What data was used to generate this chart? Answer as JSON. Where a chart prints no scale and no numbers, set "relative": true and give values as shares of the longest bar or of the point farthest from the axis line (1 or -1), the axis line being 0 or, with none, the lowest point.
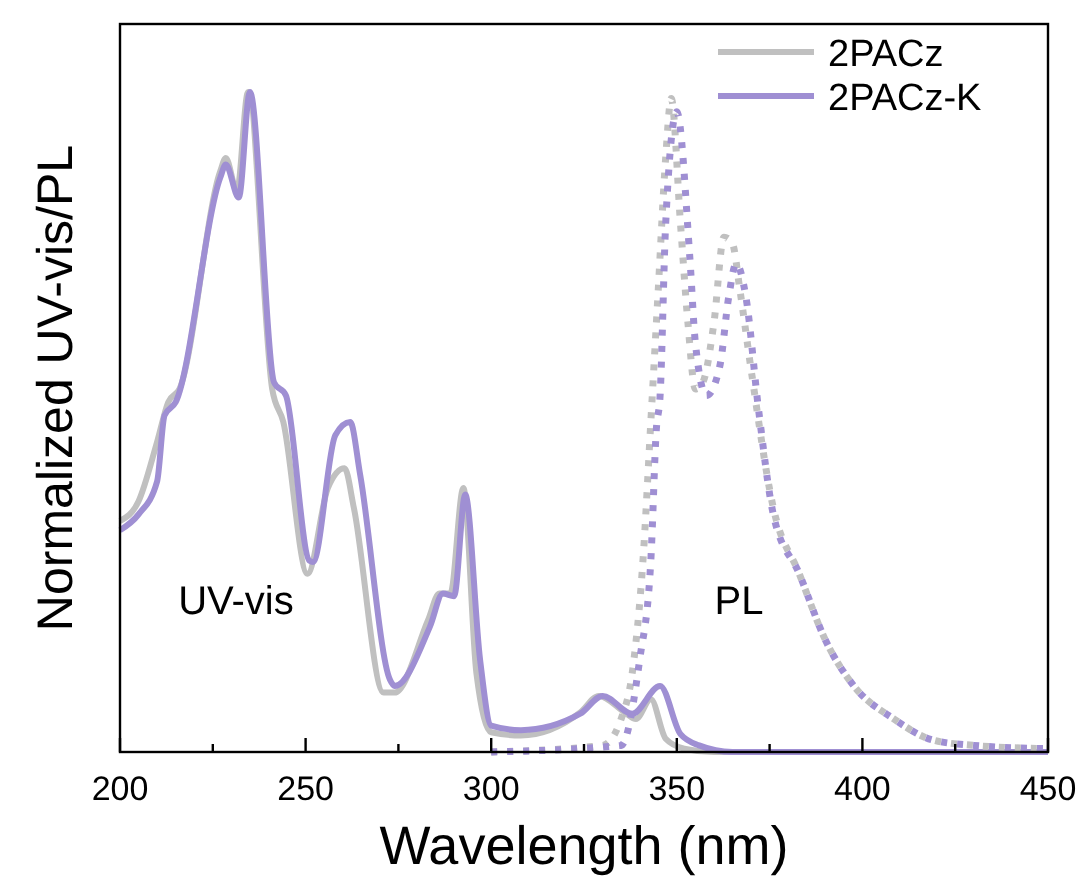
{
  "chart_data": {
    "type": "line",
    "relative": true,
    "xlabel": "Wavelength (nm)",
    "ylabel": "Normalized UV-vis/PL",
    "xlim": [
      200,
      450
    ],
    "xticks": [
      200,
      {
        "value": 225,
        "label": null
      },
      250,
      {
        "value": 275,
        "label": null
      },
      300,
      {
        "value": 325,
        "label": null
      },
      350,
      {
        "value": 375,
        "label": null
      },
      400,
      {
        "value": 425,
        "label": null
      },
      450
    ],
    "legend": "top right",
    "tick_labels": "x",
    "annotations": [
      "UV-vis",
      "PL"
    ],
    "series": [
      {
        "name": "2PACz",
        "color": "#c0c0c0",
        "line_style": "solid",
        "x": [
          200,
          205,
          210,
          213,
          216,
          227,
          228.5,
          231.5,
          234.5,
          241,
          244,
          250.5,
          256,
          260.5,
          263,
          271,
          274,
          283,
          286,
          289,
          292.5,
          296,
          300,
          308,
          324,
          329,
          336,
          339,
          343,
          347,
          352,
          360,
          450
        ],
        "values": [
          0.35,
          0.38,
          0.47,
          0.53,
          0.55,
          0.88,
          0.9,
          0.85,
          1.0,
          0.55,
          0.5,
          0.27,
          0.4,
          0.43,
          0.37,
          0.09,
          0.09,
          0.2,
          0.24,
          0.24,
          0.4,
          0.12,
          0.03,
          0.025,
          0.06,
          0.085,
          0.06,
          0.05,
          0.08,
          0.02,
          0.005,
          0,
          0
        ]
      },
      {
        "name": "2PACz-K",
        "color": "#9f8fd3",
        "line_style": "solid",
        "x": [
          200,
          205,
          210,
          212,
          215,
          227,
          228.5,
          232,
          235,
          241.5,
          244.7,
          251,
          252,
          258,
          262,
          264.7,
          272.7,
          274,
          283.5,
          287,
          290,
          293,
          297,
          300,
          308,
          324,
          330,
          338,
          345.5,
          351,
          356,
          365,
          450
        ],
        "values": [
          0.336,
          0.36,
          0.41,
          0.51,
          0.53,
          0.87,
          0.89,
          0.84,
          1.0,
          0.56,
          0.54,
          0.29,
          0.288,
          0.48,
          0.5,
          0.42,
          0.11,
          0.1,
          0.19,
          0.24,
          0.236,
          0.39,
          0.14,
          0.04,
          0.033,
          0.058,
          0.085,
          0.058,
          0.1,
          0.027,
          0.01,
          0,
          0
        ]
      },
      {
        "color": "#c0c0c0",
        "line_style": "dotted",
        "x": [
          300,
          330,
          335,
          338,
          341,
          343,
          345,
          347,
          348.5,
          351,
          353,
          355,
          357,
          360,
          362.7,
          365,
          367,
          370,
          376,
          383,
          390,
          397.7,
          408.5,
          419,
          430,
          450
        ],
        "values": [
          0,
          0.01,
          0.05,
          0.12,
          0.3,
          0.5,
          0.7,
          0.9,
          0.99,
          0.8,
          0.65,
          0.55,
          0.56,
          0.65,
          0.78,
          0.77,
          0.7,
          0.58,
          0.37,
          0.27,
          0.17,
          0.1,
          0.05,
          0.018,
          0.01,
          0.005
        ]
      },
      {
        "color": "#9f8fd3",
        "line_style": "dotted",
        "x": [
          300,
          335,
          340,
          343,
          344.5,
          345.5,
          347,
          350,
          353.5,
          355,
          358,
          361.6,
          364,
          366,
          368.6,
          372,
          376,
          383,
          390,
          397.7,
          408.5,
          419,
          430,
          450
        ],
        "values": [
          0,
          0.01,
          0.14,
          0.29,
          0.49,
          0.54,
          0.8,
          0.97,
          0.75,
          0.62,
          0.54,
          0.585,
          0.69,
          0.74,
          0.69,
          0.52,
          0.36,
          0.27,
          0.17,
          0.1,
          0.05,
          0.018,
          0.01,
          0.005
        ]
      }
    ]
  }
}
